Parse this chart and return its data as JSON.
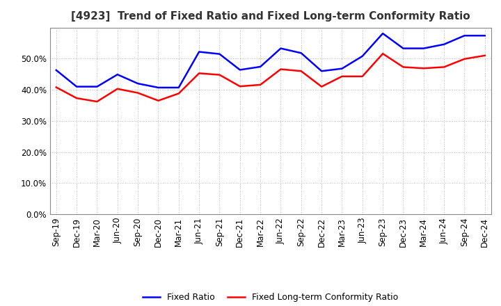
{
  "title": "[4923]  Trend of Fixed Ratio and Fixed Long-term Conformity Ratio",
  "x_labels": [
    "Sep-19",
    "Dec-19",
    "Mar-20",
    "Jun-20",
    "Sep-20",
    "Dec-20",
    "Mar-21",
    "Jun-21",
    "Sep-21",
    "Dec-21",
    "Mar-22",
    "Jun-22",
    "Sep-22",
    "Dec-22",
    "Mar-23",
    "Jun-23",
    "Sep-23",
    "Dec-23",
    "Mar-24",
    "Jun-24",
    "Sep-24",
    "Dec-24"
  ],
  "fixed_ratio": [
    0.463,
    0.41,
    0.41,
    0.449,
    0.42,
    0.407,
    0.407,
    0.522,
    0.515,
    0.464,
    0.474,
    0.533,
    0.518,
    0.46,
    0.468,
    0.508,
    0.581,
    0.533,
    0.533,
    0.546,
    0.574,
    0.574
  ],
  "fixed_lt_ratio": [
    0.408,
    0.373,
    0.362,
    0.403,
    0.39,
    0.365,
    0.388,
    0.453,
    0.448,
    0.411,
    0.416,
    0.466,
    0.46,
    0.41,
    0.443,
    0.443,
    0.516,
    0.473,
    0.469,
    0.473,
    0.499,
    0.51
  ],
  "fixed_ratio_color": "#0000ff",
  "fixed_lt_ratio_color": "#ff0000",
  "ylim": [
    0.0,
    0.6
  ],
  "yticks": [
    0.0,
    0.1,
    0.2,
    0.3,
    0.4,
    0.5
  ],
  "background_color": "#ffffff",
  "grid_color": "#aaaaaa",
  "legend_fixed": "Fixed Ratio",
  "legend_lt": "Fixed Long-term Conformity Ratio",
  "title_fontsize": 11,
  "tick_fontsize": 8.5,
  "legend_fontsize": 9
}
